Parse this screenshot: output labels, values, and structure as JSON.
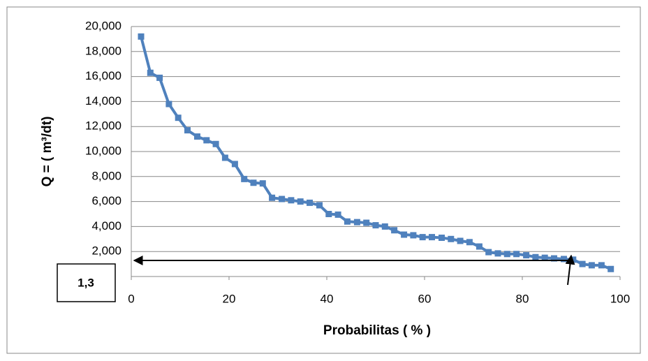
{
  "chart_data": {
    "type": "line",
    "x_label": "Probabilitas ( % )",
    "y_label": "Q = ( m³/dt)",
    "annotation": "1,3",
    "series": [
      {
        "color": "#4f81bd",
        "x": [
          2,
          3.9,
          5.8,
          7.7,
          9.6,
          11.5,
          13.5,
          15.4,
          17.3,
          19.2,
          21.2,
          23.1,
          25,
          26.9,
          28.8,
          30.8,
          32.7,
          34.6,
          36.5,
          38.5,
          40.4,
          42.3,
          44.2,
          46.2,
          48.1,
          50,
          51.9,
          53.8,
          55.8,
          57.7,
          59.6,
          61.5,
          63.5,
          65.4,
          67.3,
          69.2,
          71.2,
          73.1,
          75,
          76.9,
          78.8,
          80.8,
          82.7,
          84.6,
          86.5,
          88.5,
          90.4,
          92.3,
          94.2,
          96.2,
          98.1
        ],
        "values": [
          19200,
          16300,
          15900,
          13800,
          12700,
          11700,
          11200,
          10900,
          10600,
          9500,
          9000,
          7800,
          7500,
          7450,
          6300,
          6200,
          6100,
          6000,
          5900,
          5700,
          5000,
          4950,
          4400,
          4350,
          4300,
          4100,
          4000,
          3700,
          3350,
          3300,
          3150,
          3150,
          3100,
          3000,
          2850,
          2750,
          2400,
          1950,
          1850,
          1800,
          1800,
          1700,
          1550,
          1500,
          1450,
          1400,
          1350,
          1000,
          900,
          900,
          600
        ]
      }
    ],
    "xlim": [
      0,
      100
    ],
    "xticks": [
      0,
      20,
      40,
      60,
      80,
      100
    ],
    "ylim": [
      0,
      20000
    ],
    "yticks": [
      {
        "value": 2000,
        "label": "2,000"
      },
      {
        "value": 4000,
        "label": "4,000"
      },
      {
        "value": 6000,
        "label": "6,000"
      },
      {
        "value": 8000,
        "label": "8,000"
      },
      {
        "value": 10000,
        "label": "10,000"
      },
      {
        "value": 12000,
        "label": "12,000"
      },
      {
        "value": 14000,
        "label": "14,000"
      },
      {
        "value": 16000,
        "label": "16,000"
      },
      {
        "value": 18000,
        "label": "18,000"
      },
      {
        "value": 20000,
        "label": "20,000"
      }
    ],
    "grid": true
  }
}
